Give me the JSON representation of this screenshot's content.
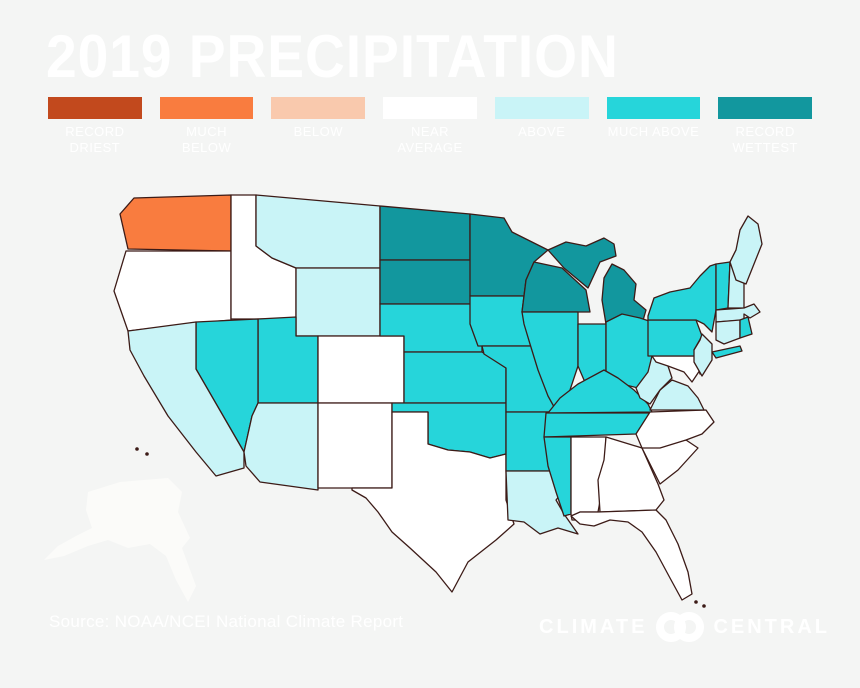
{
  "title": "2019 PRECIPITATION",
  "legend": {
    "items": [
      {
        "id": "record_driest",
        "label": "RECORD DRIEST",
        "color": "#c2491d"
      },
      {
        "id": "much_below",
        "label": "MUCH BELOW",
        "color": "#f97c3f"
      },
      {
        "id": "below",
        "label": "BELOW",
        "color": "#f9c9ad"
      },
      {
        "id": "near_average",
        "label": "NEAR AVERAGE",
        "color": "#ffffff"
      },
      {
        "id": "above",
        "label": "ABOVE",
        "color": "#c9f4f7"
      },
      {
        "id": "much_above",
        "label": "MUCH ABOVE",
        "color": "#26d5da"
      },
      {
        "id": "record_wettest",
        "label": "RECORD WETTEST",
        "color": "#12979e"
      }
    ]
  },
  "map": {
    "states": {
      "WA": "much_below",
      "OR": "near_average",
      "ID": "near_average",
      "MT": "above",
      "WY": "above",
      "CA": "above",
      "NV": "much_above",
      "UT": "much_above",
      "CO": "near_average",
      "AZ": "above",
      "NM": "near_average",
      "ND": "record_wettest",
      "SD": "record_wettest",
      "MN": "record_wettest",
      "WI": "record_wettest",
      "MI": "record_wettest",
      "NE": "much_above",
      "KS": "much_above",
      "OK": "much_above",
      "TX": "near_average",
      "IA": "much_above",
      "MO": "much_above",
      "AR": "much_above",
      "LA": "above",
      "MS": "much_above",
      "IL": "much_above",
      "IN": "much_above",
      "OH": "much_above",
      "KY": "much_above",
      "TN": "much_above",
      "AL": "near_average",
      "GA": "near_average",
      "FL": "near_average",
      "SC": "near_average",
      "NC": "near_average",
      "VA": "above",
      "WV": "above",
      "MD": "near_average",
      "DE": "near_average",
      "PA": "much_above",
      "NJ": "above",
      "NY": "much_above",
      "CT": "above",
      "RI": "much_above",
      "MA": "above",
      "VT": "much_above",
      "NH": "above",
      "ME": "above",
      "AK": "near_average"
    }
  },
  "source": "Source: NOAA/NCEI National Climate Report",
  "logo": {
    "word_left": "CLIMATE",
    "word_right": "CENTRAL"
  },
  "colors": {
    "background": "#f4f5f4",
    "state_border": "#3c1b17",
    "text": "#ffffff",
    "alaska_fill": "#fbfbf9"
  }
}
